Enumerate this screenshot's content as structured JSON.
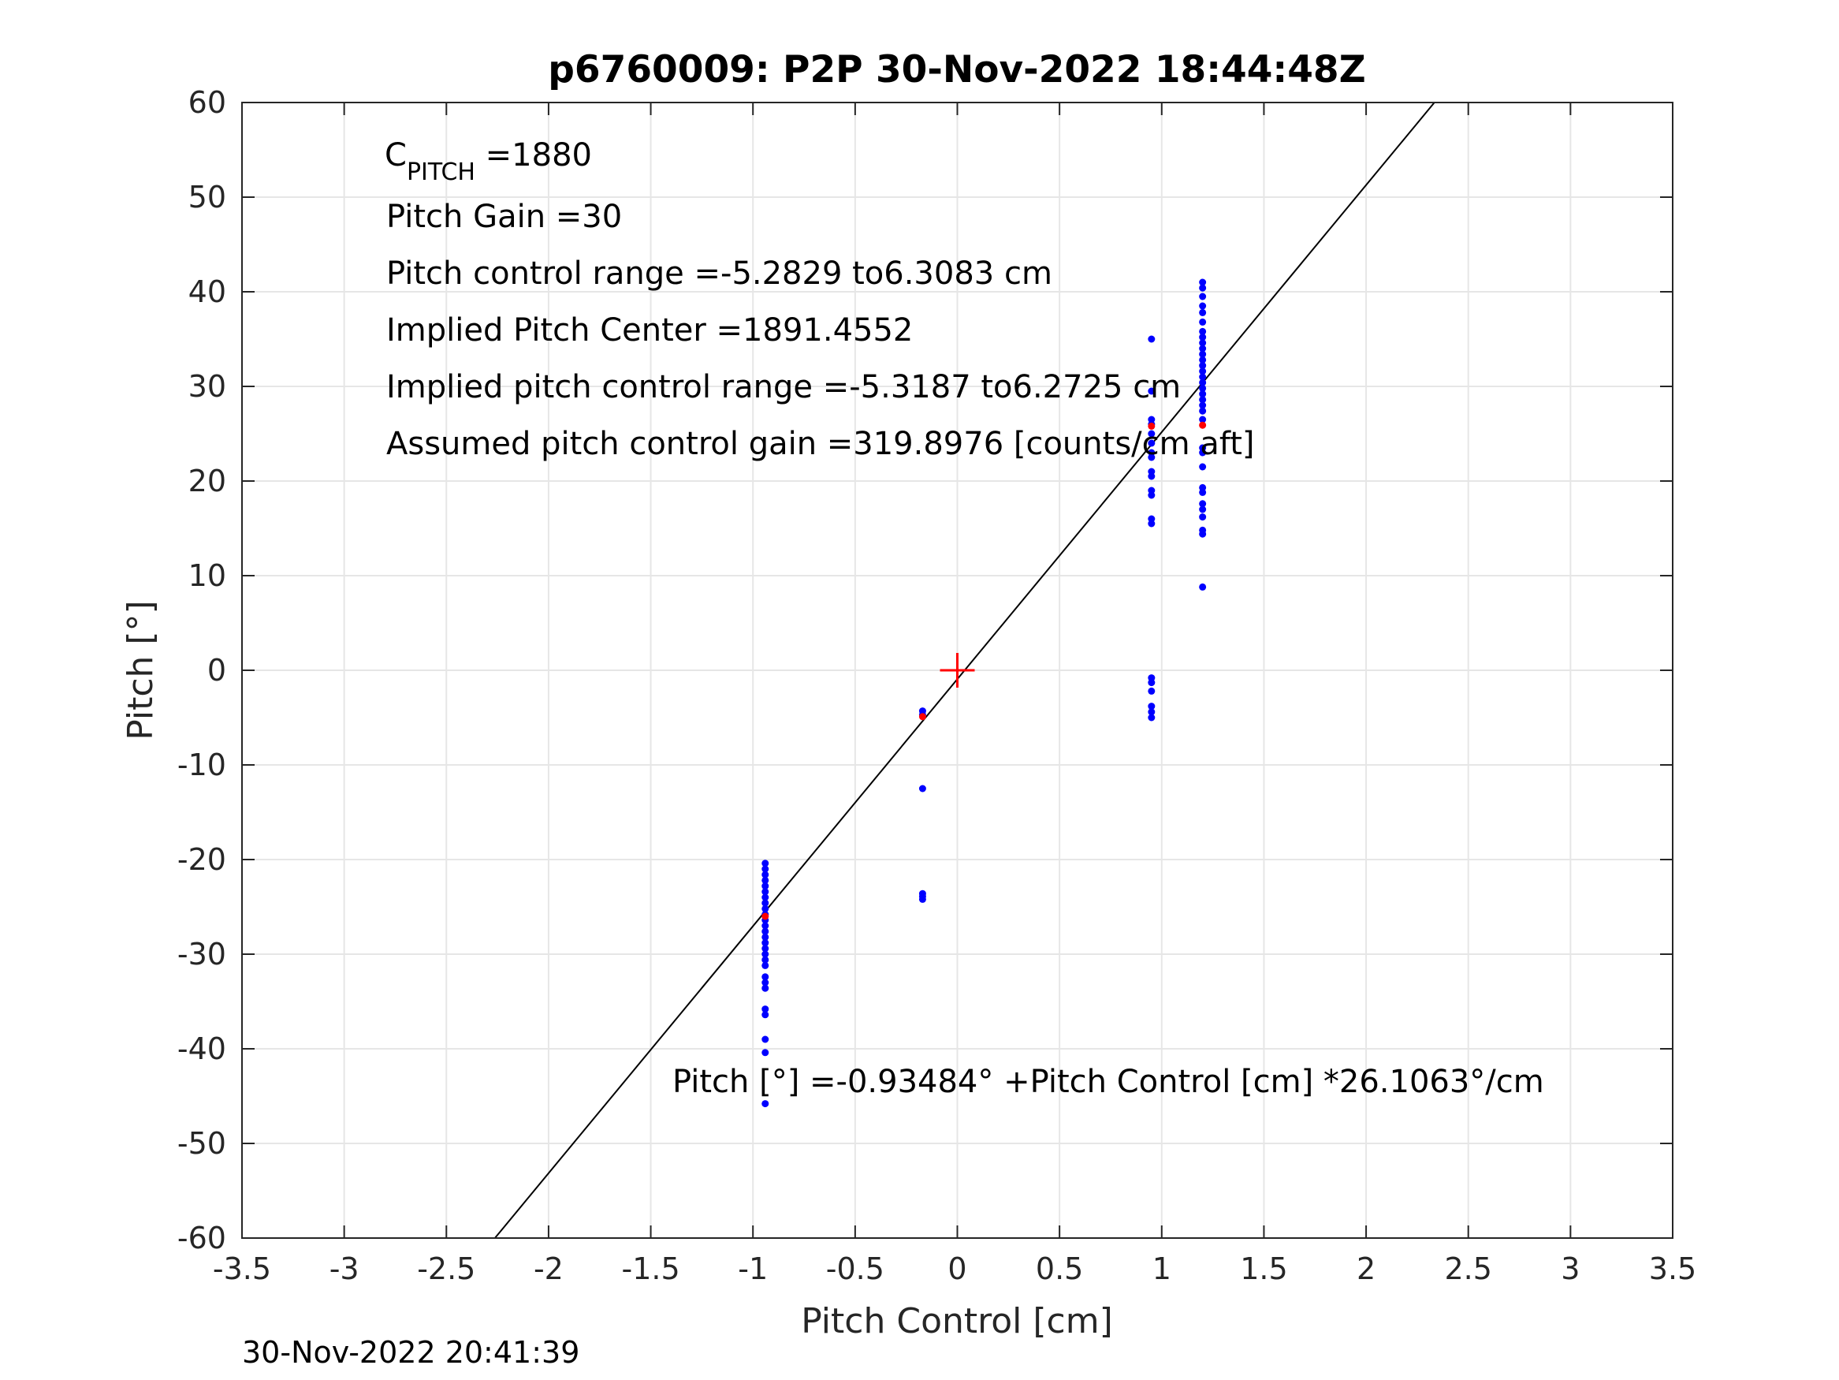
{
  "chart_data": {
    "type": "scatter",
    "title": "p6760009: P2P 30-Nov-2022 18:44:48Z",
    "xlabel": "Pitch Control [cm]",
    "ylabel": "Pitch [°]",
    "xlim": [
      -3.5,
      3.5
    ],
    "ylim": [
      -60,
      60
    ],
    "x_ticks": [
      "-3.5",
      "-3",
      "-2.5",
      "-2",
      "-1.5",
      "-1",
      "-0.5",
      "0",
      "0.5",
      "1",
      "1.5",
      "2",
      "2.5",
      "3",
      "3.5"
    ],
    "x_tick_values": [
      -3.5,
      -3,
      -2.5,
      -2,
      -1.5,
      -1,
      -0.5,
      0,
      0.5,
      1,
      1.5,
      2,
      2.5,
      3,
      3.5
    ],
    "y_ticks": [
      "60",
      "50",
      "40",
      "30",
      "20",
      "10",
      "0",
      "-10",
      "-20",
      "-30",
      "-40",
      "-50",
      "-60"
    ],
    "y_tick_values": [
      60,
      50,
      40,
      30,
      20,
      10,
      0,
      -10,
      -20,
      -30,
      -40,
      -50,
      -60
    ],
    "grid": true,
    "colors": {
      "blue_points": "#0000ff",
      "red_points": "#ff0000",
      "fit_line": "#000000",
      "grid": "#e6e6e6"
    },
    "fit_line": {
      "intercept": -0.93484,
      "slope": 26.1063
    },
    "center_marker": {
      "x": 0,
      "y": 0,
      "color": "#ff0000"
    },
    "series": [
      {
        "color": "#0000ff",
        "points": [
          [
            -0.94,
            -20.4
          ],
          [
            -0.94,
            -21.0
          ],
          [
            -0.94,
            -21.6
          ],
          [
            -0.94,
            -22.2
          ],
          [
            -0.94,
            -22.8
          ],
          [
            -0.94,
            -23.4
          ],
          [
            -0.94,
            -24.0
          ],
          [
            -0.94,
            -24.6
          ],
          [
            -0.94,
            -25.2
          ],
          [
            -0.94,
            -25.8
          ],
          [
            -0.94,
            -26.4
          ],
          [
            -0.94,
            -27.0
          ],
          [
            -0.94,
            -27.6
          ],
          [
            -0.94,
            -28.2
          ],
          [
            -0.94,
            -28.8
          ],
          [
            -0.94,
            -29.4
          ],
          [
            -0.94,
            -30.0
          ],
          [
            -0.94,
            -30.6
          ],
          [
            -0.94,
            -31.2
          ],
          [
            -0.94,
            -32.4
          ],
          [
            -0.94,
            -33.0
          ],
          [
            -0.94,
            -33.6
          ],
          [
            -0.94,
            -35.8
          ],
          [
            -0.94,
            -36.4
          ],
          [
            -0.94,
            -39.0
          ],
          [
            -0.94,
            -40.4
          ],
          [
            -0.94,
            -45.8
          ],
          [
            -0.17,
            -4.3
          ],
          [
            -0.17,
            -4.7
          ],
          [
            -0.17,
            -12.5
          ],
          [
            -0.17,
            -23.6
          ],
          [
            -0.17,
            -23.9
          ],
          [
            -0.17,
            -24.2
          ],
          [
            0.95,
            35.0
          ],
          [
            0.95,
            29.5
          ],
          [
            0.95,
            26.5
          ],
          [
            0.95,
            26.0
          ],
          [
            0.95,
            25.0
          ],
          [
            0.95,
            24.0
          ],
          [
            0.95,
            23.0
          ],
          [
            0.95,
            22.5
          ],
          [
            0.95,
            21.0
          ],
          [
            0.95,
            20.5
          ],
          [
            0.95,
            19.0
          ],
          [
            0.95,
            18.5
          ],
          [
            0.95,
            16.0
          ],
          [
            0.95,
            15.5
          ],
          [
            0.95,
            -0.8
          ],
          [
            0.95,
            -1.3
          ],
          [
            0.95,
            -2.2
          ],
          [
            0.95,
            -3.8
          ],
          [
            0.95,
            -4.4
          ],
          [
            0.95,
            -5.0
          ],
          [
            1.2,
            41.0
          ],
          [
            1.2,
            40.4
          ],
          [
            1.2,
            39.5
          ],
          [
            1.2,
            38.5
          ],
          [
            1.2,
            37.8
          ],
          [
            1.2,
            36.8
          ],
          [
            1.2,
            35.8
          ],
          [
            1.2,
            35.2
          ],
          [
            1.2,
            34.6
          ],
          [
            1.2,
            34.0
          ],
          [
            1.2,
            33.4
          ],
          [
            1.2,
            32.8
          ],
          [
            1.2,
            32.2
          ],
          [
            1.2,
            31.6
          ],
          [
            1.2,
            31.0
          ],
          [
            1.2,
            30.4
          ],
          [
            1.2,
            29.8
          ],
          [
            1.2,
            29.2
          ],
          [
            1.2,
            28.6
          ],
          [
            1.2,
            28.0
          ],
          [
            1.2,
            27.4
          ],
          [
            1.2,
            26.5
          ],
          [
            1.2,
            23.5
          ],
          [
            1.2,
            23.0
          ],
          [
            1.2,
            21.5
          ],
          [
            1.2,
            19.3
          ],
          [
            1.2,
            18.8
          ],
          [
            1.2,
            17.6
          ],
          [
            1.2,
            17.0
          ],
          [
            1.2,
            16.2
          ],
          [
            1.2,
            14.8
          ],
          [
            1.2,
            14.4
          ],
          [
            1.2,
            8.8
          ]
        ]
      },
      {
        "color": "#ff0000",
        "points": [
          [
            -0.94,
            -26.0
          ],
          [
            -0.17,
            -4.9
          ],
          [
            0.95,
            25.8
          ],
          [
            1.2,
            25.9
          ]
        ]
      }
    ],
    "annotations": {
      "c_pitch_main": "C",
      "c_pitch_sub": "PITCH",
      "c_pitch_value": " =1880",
      "pitch_gain": "Pitch Gain =30",
      "control_range": "Pitch control range =-5.2829 to6.3083 cm",
      "implied_center": "Implied Pitch Center =1891.4552",
      "implied_range": "Implied pitch control range =-5.3187 to6.2725 cm",
      "assumed_gain": "Assumed pitch control gain =319.8976 [counts/cm aft]",
      "fit_equation": "Pitch [°] =-0.93484° +Pitch Control [cm] *26.1063°/cm"
    },
    "footer_timestamp": "30-Nov-2022 20:41:39"
  }
}
